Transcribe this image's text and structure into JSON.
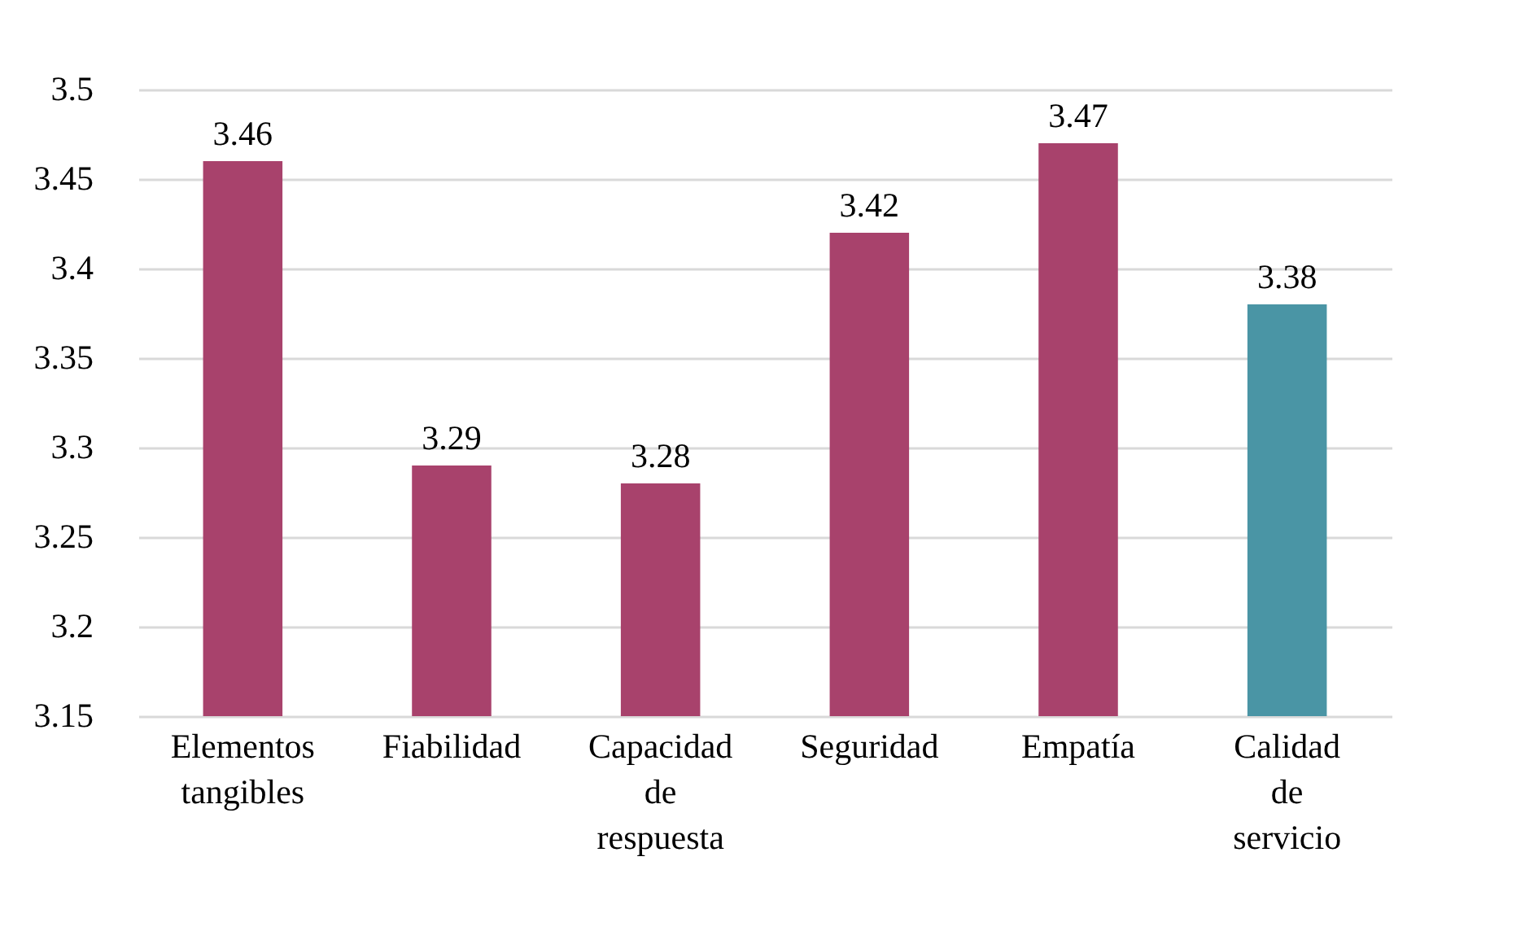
{
  "chart_data": {
    "type": "bar",
    "categories": [
      "Elementos tangibles",
      "Fiabilidad",
      "Capacidad de respuesta",
      "Seguridad",
      "Empatía",
      "Calidad de servicio"
    ],
    "values": [
      3.46,
      3.29,
      3.28,
      3.42,
      3.47,
      3.38
    ],
    "colors": [
      "#a8426c",
      "#a8426c",
      "#a8426c",
      "#a8426c",
      "#a8426c",
      "#4a95a5"
    ],
    "ylim": [
      3.15,
      3.5
    ],
    "yticks": [
      3.15,
      3.2,
      3.25,
      3.3,
      3.35,
      3.4,
      3.45,
      3.5
    ],
    "grid": "y",
    "data_labels": true
  }
}
